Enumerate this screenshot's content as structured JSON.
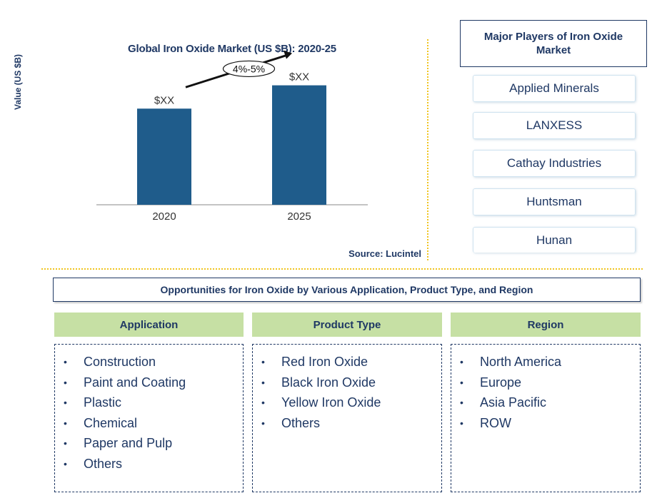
{
  "chart_data": {
    "type": "bar",
    "title": "Global Iron Oxide Market (US $B): 2020-25",
    "ylabel": "Value (US $B)",
    "categories": [
      "2020",
      "2025"
    ],
    "values": [
      3.3,
      4.1
    ],
    "data_labels": [
      "$XX",
      "$XX"
    ],
    "growth_label": "4%-5%",
    "ylim": [
      0,
      6
    ],
    "color": "#1f5c8b",
    "grid": false
  },
  "source": "Source: Lucintel",
  "players": {
    "title": "Major Players of Iron Oxide Market",
    "items": [
      "Applied Minerals",
      "LANXESS",
      "Cathay Industries",
      "Huntsman",
      "Hunan"
    ]
  },
  "opportunities": {
    "title": "Opportunities for Iron Oxide by Various Application, Product Type, and Region",
    "header_color": "#c6e0a4",
    "categories": [
      {
        "header": "Application",
        "items": [
          "Construction",
          "Paint and Coating",
          "Plastic",
          "Chemical",
          "Paper and Pulp",
          "Others"
        ]
      },
      {
        "header": "Product Type",
        "items": [
          "Red Iron Oxide",
          "Black Iron Oxide",
          "Yellow Iron Oxide",
          "Others"
        ]
      },
      {
        "header": "Region",
        "items": [
          "North America",
          "Europe",
          "Asia Pacific",
          "ROW"
        ]
      }
    ]
  }
}
